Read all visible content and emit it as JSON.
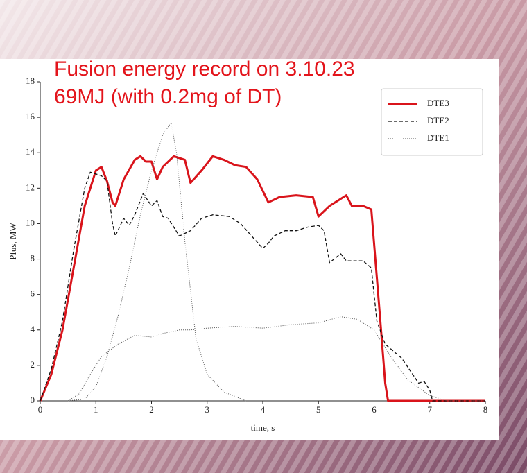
{
  "chart_data": {
    "type": "line",
    "annotations": [
      "Fusion energy record on 3.10.23",
      "69MJ (with 0.2mg of DT)"
    ],
    "xlabel": "time, s",
    "ylabel": "Pfus, MW",
    "xlim": [
      0,
      8
    ],
    "ylim": [
      0,
      18
    ],
    "xticks": [
      0,
      1,
      2,
      3,
      4,
      5,
      6,
      7,
      8
    ],
    "yticks": [
      0,
      2,
      4,
      6,
      8,
      10,
      12,
      14,
      16,
      18
    ],
    "legend": "upper right",
    "series": [
      {
        "name": "DTE3",
        "color": "#d9141b",
        "style": "solid",
        "x": [
          0,
          0.2,
          0.4,
          0.6,
          0.8,
          1.0,
          1.1,
          1.2,
          1.3,
          1.35,
          1.5,
          1.7,
          1.8,
          1.9,
          2.0,
          2.1,
          2.2,
          2.4,
          2.6,
          2.7,
          2.9,
          3.1,
          3.3,
          3.5,
          3.7,
          3.9,
          4.1,
          4.3,
          4.6,
          4.9,
          5.0,
          5.2,
          5.5,
          5.6,
          5.8,
          5.95,
          6.1,
          6.2,
          6.25,
          8
        ],
        "values": [
          0,
          1.5,
          4,
          7.5,
          11,
          13,
          13.2,
          12.4,
          11.2,
          11.0,
          12.5,
          13.6,
          13.8,
          13.5,
          13.5,
          12.5,
          13.2,
          13.8,
          13.6,
          12.3,
          13,
          13.8,
          13.6,
          13.3,
          13.2,
          12.5,
          11.2,
          11.5,
          11.6,
          11.5,
          10.4,
          11,
          11.6,
          11,
          11,
          10.8,
          5,
          1,
          0,
          0
        ]
      },
      {
        "name": "DTE2",
        "color": "#111111",
        "style": "dashed",
        "x": [
          0,
          0.2,
          0.4,
          0.6,
          0.8,
          0.9,
          1.1,
          1.2,
          1.3,
          1.35,
          1.5,
          1.6,
          1.7,
          1.85,
          2.0,
          2.1,
          2.2,
          2.3,
          2.5,
          2.7,
          2.9,
          3.1,
          3.4,
          3.6,
          3.8,
          4.0,
          4.1,
          4.2,
          4.4,
          4.6,
          4.8,
          5.0,
          5.1,
          5.2,
          5.4,
          5.5,
          5.8,
          5.95,
          6.05,
          6.2,
          6.5,
          6.8,
          6.9,
          7.0,
          7.05,
          8
        ],
        "values": [
          0,
          1.8,
          4.5,
          8.5,
          12,
          12.9,
          12.7,
          12.4,
          10,
          9.3,
          10.3,
          9.9,
          10.5,
          11.7,
          11,
          11.3,
          10.4,
          10.3,
          9.3,
          9.6,
          10.3,
          10.5,
          10.4,
          10,
          9.3,
          8.6,
          8.9,
          9.3,
          9.6,
          9.6,
          9.8,
          9.9,
          9.6,
          7.8,
          8.3,
          7.9,
          7.9,
          7.5,
          4.5,
          3.2,
          2.4,
          1,
          1.1,
          0.6,
          0,
          0
        ]
      },
      {
        "name": "DTE1",
        "color": "#555555",
        "style": "dotted",
        "x": [
          0.5,
          0.8,
          1.0,
          1.2,
          1.4,
          1.6,
          1.8,
          2.0,
          2.2,
          2.35,
          2.45,
          2.6,
          2.8,
          3.0,
          3.3,
          3.7,
          null,
          0.5,
          0.7,
          0.9,
          1.1,
          1.4,
          1.7,
          2.0,
          2.2,
          2.5,
          2.7,
          3.0,
          3.5,
          4.0,
          4.5,
          5.0,
          5.4,
          5.7,
          6.0,
          6.3,
          6.6,
          7.0,
          7.3,
          8
        ],
        "values": [
          0,
          0.1,
          0.8,
          2.5,
          4.8,
          7.5,
          10.5,
          13,
          15,
          15.7,
          14,
          9,
          3.5,
          1.5,
          0.5,
          0,
          null,
          0,
          0.4,
          1.5,
          2.5,
          3.2,
          3.7,
          3.6,
          3.8,
          4.0,
          4.0,
          4.1,
          4.2,
          4.1,
          4.3,
          4.4,
          4.75,
          4.6,
          4,
          2.5,
          1.2,
          0.3,
          0,
          0
        ]
      }
    ]
  }
}
